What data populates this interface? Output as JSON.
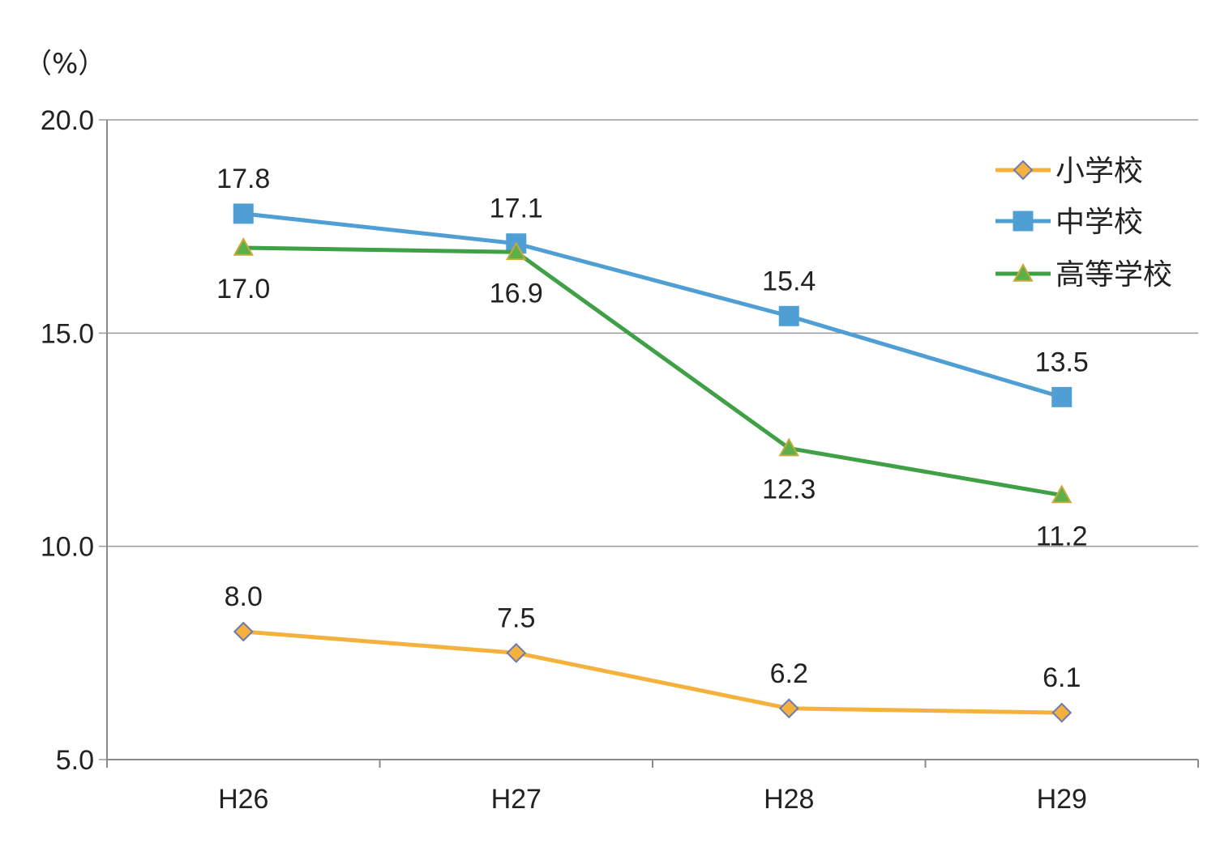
{
  "chart_data": {
    "type": "line",
    "unit_label": "（%）",
    "categories": [
      "H26",
      "H27",
      "H28",
      "H29"
    ],
    "ylim": [
      5,
      20
    ],
    "yticks": [
      "5.0",
      "10.0",
      "15.0",
      "20.0"
    ],
    "grid": true,
    "legend_position": "top-right",
    "series": [
      {
        "name": "小学校",
        "values": [
          8.0,
          7.5,
          6.2,
          6.1
        ],
        "labels": [
          "8.0",
          "7.5",
          "6.2",
          "6.1"
        ],
        "label_side": "above",
        "color": "#F4B13E",
        "marker": "diamond",
        "marker_fill": "#F4B13E",
        "marker_stroke": "#6B7BB0"
      },
      {
        "name": "中学校",
        "values": [
          17.8,
          17.1,
          15.4,
          13.5
        ],
        "labels": [
          "17.8",
          "17.1",
          "15.4",
          "13.5"
        ],
        "label_side": "above",
        "color": "#4F9FD4",
        "marker": "square",
        "marker_fill": "#4F9FD4",
        "marker_stroke": "#4F9FD4"
      },
      {
        "name": "高等学校",
        "values": [
          17.0,
          16.9,
          12.3,
          11.2
        ],
        "labels": [
          "17.0",
          "16.9",
          "12.3",
          "11.2"
        ],
        "label_side": "below",
        "color": "#3FA046",
        "marker": "triangle",
        "marker_fill": "#5BB04A",
        "marker_stroke": "#C8A83A"
      }
    ]
  }
}
